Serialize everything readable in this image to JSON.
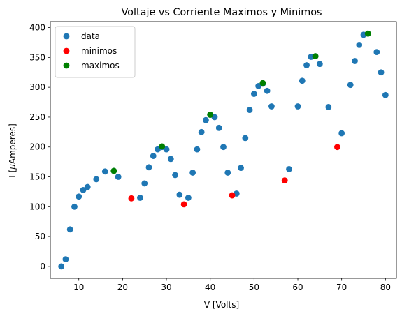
{
  "chart_data": {
    "type": "scatter",
    "title": "Voltaje vs Corriente Maximos y Minimos",
    "xlabel": "V [Volts]",
    "ylabel_prefix": "I [",
    "ylabel_mu": "μ",
    "ylabel_suffix": "Amperes]",
    "xlim": [
      3.5,
      82.5
    ],
    "ylim": [
      -20,
      410
    ],
    "x_ticks": [
      10,
      20,
      30,
      40,
      50,
      60,
      70,
      80
    ],
    "y_ticks": [
      0,
      50,
      100,
      150,
      200,
      250,
      300,
      350,
      400
    ],
    "legend_position": "upper-left",
    "series": [
      {
        "name": "data",
        "color": "#1f77b4",
        "points": [
          [
            6,
            0
          ],
          [
            7,
            12
          ],
          [
            8,
            62
          ],
          [
            9,
            100
          ],
          [
            10,
            117
          ],
          [
            11,
            128
          ],
          [
            12,
            133
          ],
          [
            14,
            146
          ],
          [
            16,
            159
          ],
          [
            18,
            160
          ],
          [
            19,
            150
          ],
          [
            24,
            115
          ],
          [
            25,
            139
          ],
          [
            26,
            166
          ],
          [
            27,
            185
          ],
          [
            28,
            196
          ],
          [
            29,
            200
          ],
          [
            30,
            196
          ],
          [
            31,
            180
          ],
          [
            32,
            153
          ],
          [
            33,
            120
          ],
          [
            35,
            115
          ],
          [
            36,
            157
          ],
          [
            37,
            196
          ],
          [
            38,
            225
          ],
          [
            39,
            245
          ],
          [
            40,
            254
          ],
          [
            41,
            250
          ],
          [
            42,
            232
          ],
          [
            43,
            200
          ],
          [
            44,
            157
          ],
          [
            46,
            122
          ],
          [
            47,
            165
          ],
          [
            48,
            215
          ],
          [
            49,
            262
          ],
          [
            50,
            289
          ],
          [
            51,
            302
          ],
          [
            52,
            306
          ],
          [
            53,
            294
          ],
          [
            54,
            268
          ],
          [
            58,
            163
          ],
          [
            60,
            268
          ],
          [
            61,
            311
          ],
          [
            62,
            337
          ],
          [
            63,
            351
          ],
          [
            64,
            352
          ],
          [
            65,
            339
          ],
          [
            67,
            267
          ],
          [
            70,
            223
          ],
          [
            72,
            304
          ],
          [
            73,
            344
          ],
          [
            74,
            371
          ],
          [
            75,
            388
          ],
          [
            76,
            390
          ],
          [
            78,
            359
          ],
          [
            79,
            325
          ],
          [
            80,
            287
          ]
        ]
      },
      {
        "name": "minimos",
        "color": "#ff0000",
        "points": [
          [
            22,
            114
          ],
          [
            34,
            104
          ],
          [
            45,
            119
          ],
          [
            57,
            144
          ],
          [
            69,
            200
          ]
        ]
      },
      {
        "name": "maximos",
        "color": "#008000",
        "points": [
          [
            18,
            160
          ],
          [
            29,
            201
          ],
          [
            40,
            254
          ],
          [
            52,
            307
          ],
          [
            64,
            352
          ],
          [
            76,
            390
          ]
        ]
      }
    ]
  }
}
